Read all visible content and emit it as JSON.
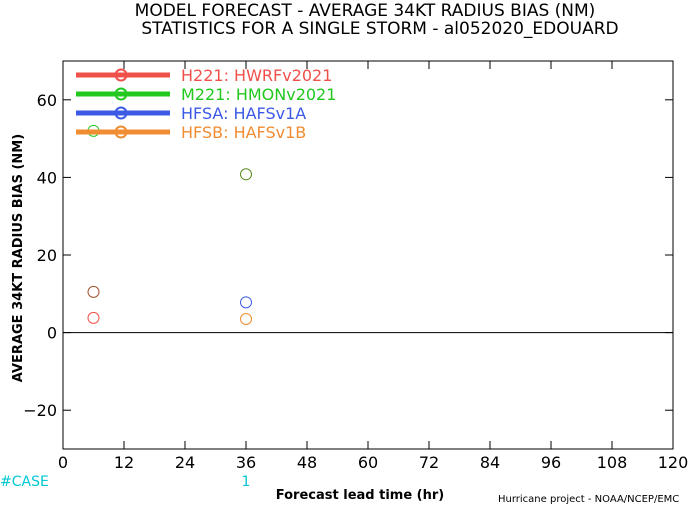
{
  "title_line1": "MODEL FORECAST - AVERAGE 34KT RADIUS BIAS (NM)",
  "title_line2": "STATISTICS FOR A SINGLE STORM - al052020_EDOUARD",
  "credit": "Hurricane project - NOAA/NCEP/EMC",
  "case_label": "#CASE",
  "chart_data": {
    "type": "scatter",
    "xlabel": "Forecast lead time (hr)",
    "ylabel": "AVERAGE 34KT RADIUS BIAS (NM)",
    "xlim": [
      0,
      120
    ],
    "ylim": [
      -30,
      70
    ],
    "x_ticks": [
      0,
      12,
      24,
      36,
      48,
      60,
      72,
      84,
      96,
      108,
      120
    ],
    "y_ticks": [
      -20,
      0,
      20,
      40,
      60
    ],
    "case_counts": [
      {
        "x": 36,
        "count": "1"
      }
    ],
    "zero_line": true,
    "grid": false,
    "legend_position": "top-left",
    "series": [
      {
        "name": "H221:  HWRFv2021",
        "color": "#f0504a",
        "points": [
          {
            "x": 6,
            "y": 3.8
          }
        ]
      },
      {
        "name": "M221:  HMONv2021",
        "color": "#22c81e",
        "points": [
          {
            "x": 6,
            "y": 52
          }
        ]
      },
      {
        "name": "HFSA:  HAFSv1A",
        "color": "#3c5ae6",
        "points": [
          {
            "x": 36,
            "y": 7.8
          }
        ]
      },
      {
        "name": "HFSB:  HAFSv1B",
        "color": "#f08c32",
        "points": [
          {
            "x": 36,
            "y": 3.5
          }
        ]
      }
    ],
    "extra_points": [
      {
        "x": 6,
        "y": 10.5,
        "color": "#a0522d"
      },
      {
        "x": 36,
        "y": 40.8,
        "color": "#5a8c1e"
      }
    ]
  }
}
